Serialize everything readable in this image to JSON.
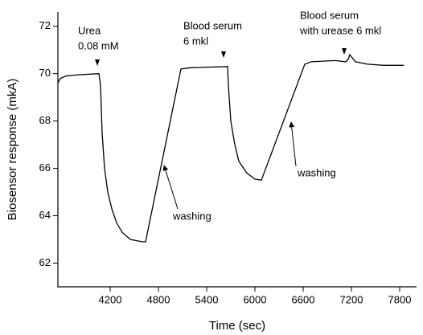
{
  "chart_data": {
    "type": "line",
    "x_label": "Time (sec)",
    "y_label": "Biosensor response (mkA)",
    "xlim": [
      3550,
      8010
    ],
    "ylim": [
      61,
      72.6
    ],
    "xticks": [
      4200,
      4800,
      5400,
      6000,
      6600,
      7200,
      7800
    ],
    "yticks": [
      62,
      64,
      66,
      68,
      70,
      72
    ],
    "annotations": [
      "Urea",
      "0.08 mM",
      "Blood serum",
      "6 mkl",
      "Blood serum",
      "with urease 6 mkl",
      "washing",
      "washing"
    ],
    "series": [
      {
        "color": "#000000",
        "x": [
          3550,
          3580,
          3650,
          3800,
          4060,
          4080,
          4100,
          4130,
          4170,
          4220,
          4280,
          4350,
          4450,
          4600,
          4640,
          5080,
          5200,
          5660,
          5670,
          5700,
          5750,
          5800,
          5900,
          6000,
          6080,
          6620,
          6700,
          7000,
          7130,
          7160,
          7180,
          7250,
          7400,
          7600,
          7850
        ],
        "values": [
          69.6,
          69.8,
          69.9,
          69.95,
          70.0,
          69.5,
          67.5,
          66.0,
          65.0,
          64.3,
          63.7,
          63.3,
          63.0,
          62.9,
          62.9,
          70.2,
          70.25,
          70.3,
          69.5,
          68.0,
          67.0,
          66.3,
          65.8,
          65.55,
          65.5,
          70.4,
          70.5,
          70.55,
          70.5,
          70.6,
          70.8,
          70.5,
          70.4,
          70.35,
          70.35
        ]
      }
    ]
  }
}
